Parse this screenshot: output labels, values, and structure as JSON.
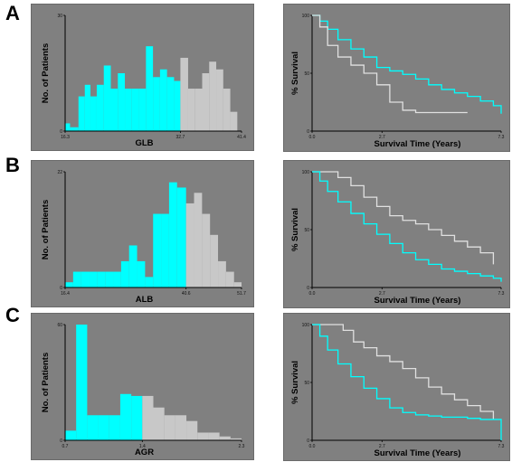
{
  "panels": [
    {
      "letter": "A"
    },
    {
      "letter": "B"
    },
    {
      "letter": "C"
    }
  ],
  "colors": {
    "background": "#808080",
    "cyan": "#00ffff",
    "light_gray": "#c8c8c8",
    "km_white": "#e0e0e0"
  },
  "chart_data": [
    {
      "type": "bar",
      "variant": "histogram",
      "xlabel": "GLB",
      "ylabel": "No. of Patients",
      "x_ticks": [
        "16.3",
        "32.7",
        "41.4"
      ],
      "y_ticks": [
        "0",
        "30"
      ],
      "xlim": [
        16.3,
        41.4
      ],
      "ylim": [
        0,
        30
      ],
      "cutoff": 32.7,
      "series": [
        {
          "color": "#00ffff",
          "bins": [
            [
              16.3,
              17.0,
              2
            ],
            [
              17.0,
              18.2,
              1
            ],
            [
              18.2,
              19.1,
              9
            ],
            [
              19.1,
              19.9,
              12
            ],
            [
              19.9,
              20.8,
              9
            ],
            [
              20.8,
              21.8,
              12
            ],
            [
              21.8,
              22.8,
              17
            ],
            [
              22.8,
              23.8,
              11
            ],
            [
              23.8,
              24.8,
              15
            ],
            [
              24.8,
              25.8,
              11
            ],
            [
              25.8,
              26.8,
              11
            ],
            [
              26.8,
              27.8,
              11
            ],
            [
              27.8,
              28.8,
              22
            ],
            [
              28.8,
              29.8,
              14
            ],
            [
              29.8,
              30.8,
              16
            ],
            [
              30.8,
              31.8,
              14
            ],
            [
              31.8,
              32.7,
              13
            ]
          ]
        },
        {
          "color": "#c8c8c8",
          "bins": [
            [
              32.7,
              33.8,
              19
            ],
            [
              33.8,
              34.8,
              11
            ],
            [
              34.8,
              35.8,
              11
            ],
            [
              35.8,
              36.8,
              15
            ],
            [
              36.8,
              37.8,
              18
            ],
            [
              37.8,
              38.8,
              16
            ],
            [
              38.8,
              39.8,
              11
            ],
            [
              39.8,
              40.8,
              5
            ]
          ]
        }
      ]
    },
    {
      "type": "line",
      "variant": "step",
      "xlabel": "Survival Time (Years)",
      "ylabel": "% Survival",
      "x_ticks": [
        "0.0",
        "2.7",
        "7.3"
      ],
      "y_ticks": [
        "0",
        "50",
        "100"
      ],
      "xlim": [
        0,
        7.3
      ],
      "ylim": [
        0,
        100
      ],
      "series": [
        {
          "color": "#00ffff",
          "x": [
            0,
            0.3,
            0.6,
            1.0,
            1.5,
            2.0,
            2.5,
            3.0,
            3.5,
            4.0,
            4.5,
            5.0,
            5.5,
            6.0,
            6.5,
            7.0,
            7.3
          ],
          "y": [
            100,
            95,
            88,
            79,
            71,
            64,
            55,
            52,
            49,
            45,
            40,
            36,
            33,
            30,
            26,
            22,
            15
          ]
        },
        {
          "color": "#e0e0e0",
          "x": [
            0,
            0.3,
            0.6,
            1.0,
            1.5,
            2.0,
            2.5,
            3.0,
            3.5,
            4.0,
            4.5,
            5.0,
            5.5,
            6.0
          ],
          "y": [
            100,
            90,
            74,
            64,
            57,
            50,
            40,
            25,
            18,
            16,
            16,
            16,
            16,
            16
          ]
        }
      ]
    },
    {
      "type": "bar",
      "variant": "histogram",
      "xlabel": "ALB",
      "ylabel": "No. of Patients",
      "x_ticks": [
        "16.4",
        "40.6",
        "51.7"
      ],
      "y_ticks": [
        "0",
        "22"
      ],
      "xlim": [
        16.4,
        51.7
      ],
      "ylim": [
        0,
        22
      ],
      "cutoff": 40.6,
      "series": [
        {
          "color": "#00ffff",
          "bins": [
            [
              16.4,
              18.0,
              1
            ],
            [
              18.0,
              19.6,
              3
            ],
            [
              19.6,
              21.2,
              3
            ],
            [
              21.2,
              22.8,
              3
            ],
            [
              22.8,
              24.4,
              3
            ],
            [
              24.4,
              26.0,
              3
            ],
            [
              26.0,
              27.6,
              3
            ],
            [
              27.6,
              29.2,
              5
            ],
            [
              29.2,
              30.8,
              8
            ],
            [
              30.8,
              32.4,
              5
            ],
            [
              32.4,
              34.0,
              2
            ],
            [
              34.0,
              35.6,
              14
            ],
            [
              35.6,
              37.2,
              14
            ],
            [
              37.2,
              38.8,
              20
            ],
            [
              38.8,
              40.6,
              19
            ]
          ]
        },
        {
          "color": "#c8c8c8",
          "bins": [
            [
              40.6,
              42.2,
              16
            ],
            [
              42.2,
              43.8,
              18
            ],
            [
              43.8,
              45.4,
              14
            ],
            [
              45.4,
              47.0,
              10
            ],
            [
              47.0,
              48.6,
              5
            ],
            [
              48.6,
              50.2,
              3
            ],
            [
              50.2,
              51.7,
              1
            ]
          ]
        }
      ]
    },
    {
      "type": "line",
      "variant": "step",
      "xlabel": "Survival Time (Years)",
      "ylabel": "% Survival",
      "x_ticks": [
        "0.0",
        "2.7",
        "7.3"
      ],
      "y_ticks": [
        "0",
        "50",
        "100"
      ],
      "xlim": [
        0,
        7.3
      ],
      "ylim": [
        0,
        100
      ],
      "series": [
        {
          "color": "#e0e0e0",
          "x": [
            0,
            0.5,
            1.0,
            1.5,
            2.0,
            2.5,
            3.0,
            3.5,
            4.0,
            4.5,
            5.0,
            5.5,
            6.0,
            6.5,
            7.0
          ],
          "y": [
            100,
            100,
            95,
            88,
            78,
            70,
            62,
            58,
            55,
            50,
            45,
            40,
            35,
            30,
            20
          ]
        },
        {
          "color": "#00ffff",
          "x": [
            0,
            0.3,
            0.6,
            1.0,
            1.5,
            2.0,
            2.5,
            3.0,
            3.5,
            4.0,
            4.5,
            5.0,
            5.5,
            6.0,
            6.5,
            7.0,
            7.3
          ],
          "y": [
            100,
            92,
            83,
            74,
            64,
            55,
            46,
            38,
            30,
            24,
            20,
            16,
            14,
            12,
            10,
            8,
            5
          ]
        }
      ]
    },
    {
      "type": "bar",
      "variant": "histogram",
      "xlabel": "AGR",
      "ylabel": "No. of Patients",
      "x_ticks": [
        "0.7",
        "1.4",
        "2.3"
      ],
      "y_ticks": [
        "0",
        "60"
      ],
      "xlim": [
        0.7,
        2.3
      ],
      "ylim": [
        0,
        60
      ],
      "cutoff": 1.4,
      "series": [
        {
          "color": "#00ffff",
          "bins": [
            [
              0.7,
              0.8,
              5
            ],
            [
              0.8,
              0.9,
              60
            ],
            [
              0.9,
              1.0,
              13
            ],
            [
              1.0,
              1.1,
              13
            ],
            [
              1.1,
              1.2,
              13
            ],
            [
              1.2,
              1.3,
              24
            ],
            [
              1.3,
              1.4,
              23
            ]
          ]
        },
        {
          "color": "#c8c8c8",
          "bins": [
            [
              1.4,
              1.5,
              23
            ],
            [
              1.5,
              1.6,
              17
            ],
            [
              1.6,
              1.7,
              13
            ],
            [
              1.7,
              1.8,
              13
            ],
            [
              1.8,
              1.9,
              10
            ],
            [
              1.9,
              2.0,
              4
            ],
            [
              2.0,
              2.1,
              4
            ],
            [
              2.1,
              2.2,
              2
            ],
            [
              2.2,
              2.3,
              1
            ]
          ]
        }
      ]
    },
    {
      "type": "line",
      "variant": "step",
      "xlabel": "Survival Time (Years)",
      "ylabel": "% Survival",
      "x_ticks": [
        "0.0",
        "2.7",
        "7.3"
      ],
      "y_ticks": [
        "0",
        "50",
        "100"
      ],
      "xlim": [
        0,
        7.3
      ],
      "ylim": [
        0,
        100
      ],
      "series": [
        {
          "color": "#e0e0e0",
          "x": [
            0,
            0.8,
            1.2,
            1.6,
            2.0,
            2.5,
            3.0,
            3.5,
            4.0,
            4.5,
            5.0,
            5.5,
            6.0,
            6.5,
            7.0
          ],
          "y": [
            100,
            100,
            95,
            85,
            80,
            73,
            68,
            62,
            54,
            46,
            40,
            35,
            30,
            25,
            18
          ]
        },
        {
          "color": "#00ffff",
          "x": [
            0,
            0.3,
            0.6,
            1.0,
            1.5,
            2.0,
            2.5,
            3.0,
            3.5,
            4.0,
            4.5,
            5.0,
            5.5,
            6.0,
            6.5,
            7.0,
            7.3
          ],
          "y": [
            100,
            90,
            78,
            66,
            55,
            45,
            36,
            28,
            24,
            22,
            21,
            20,
            20,
            19,
            18,
            18,
            0
          ]
        }
      ]
    }
  ]
}
